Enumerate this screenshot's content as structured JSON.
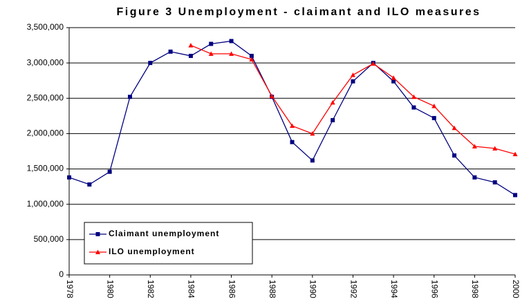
{
  "chart_data": {
    "type": "line",
    "title": "Figure 3 Unemployment - claimant and ILO measures",
    "x": [
      1978,
      1979,
      1980,
      1981,
      1982,
      1983,
      1984,
      1985,
      1986,
      1987,
      1988,
      1989,
      1990,
      1991,
      1992,
      1993,
      1994,
      1995,
      1996,
      1997,
      1998,
      1999,
      2000
    ],
    "series": [
      {
        "name": "Claimant unemployment",
        "color": "#000080",
        "marker": "square",
        "values": [
          1380000,
          1280000,
          1460000,
          2520000,
          3000000,
          3160000,
          3100000,
          3270000,
          3310000,
          3100000,
          2520000,
          1880000,
          1620000,
          2190000,
          2740000,
          3000000,
          2740000,
          2370000,
          2220000,
          1690000,
          1380000,
          1310000,
          1130000
        ]
      },
      {
        "name": "ILO unemployment",
        "color": "#ff0000",
        "marker": "triangle",
        "values": [
          null,
          null,
          null,
          null,
          null,
          null,
          3250000,
          3130000,
          3130000,
          3050000,
          2530000,
          2110000,
          2000000,
          2440000,
          2830000,
          2990000,
          2790000,
          2520000,
          2390000,
          2080000,
          1820000,
          1790000,
          1710000
        ]
      }
    ],
    "xlim": [
      1978,
      2000
    ],
    "xticks": [
      1978,
      1980,
      1982,
      1984,
      1986,
      1988,
      1990,
      1992,
      1994,
      1996,
      1998,
      2000
    ],
    "ylim": [
      0,
      3500000
    ],
    "yticks": [
      0,
      {
        "value": 500000,
        "label": "500,000"
      },
      {
        "value": 1000000,
        "label": "1,000,000"
      },
      {
        "value": 1500000,
        "label": "1,500,000"
      },
      {
        "value": 2000000,
        "label": "2,000,000"
      },
      {
        "value": 2500000,
        "label": "2,500,000"
      },
      {
        "value": 3000000,
        "label": "3,000,000"
      },
      {
        "value": 3500000,
        "label": "3,500,000"
      }
    ],
    "grid": true,
    "legend": "lower-left"
  }
}
